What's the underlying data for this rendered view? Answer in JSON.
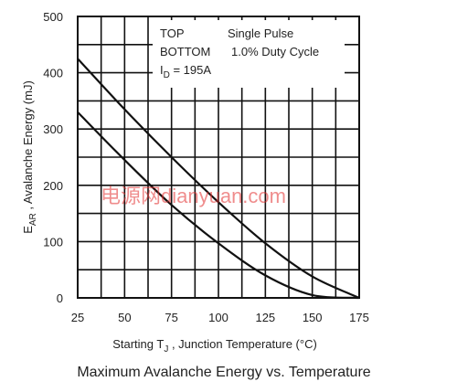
{
  "chart_data": {
    "type": "line",
    "caption": "Maximum Avalanche Energy vs. Temperature",
    "xlabel": {
      "prefix": "Starting T",
      "sub": "J",
      "suffix": " , Junction Temperature (°C)"
    },
    "ylabel": {
      "prefix": "E",
      "sub": "AR",
      "suffix": " , Avalanche Energy (mJ)"
    },
    "xlim": [
      25,
      175
    ],
    "ylim": [
      0,
      500
    ],
    "x_ticks": [
      25,
      50,
      75,
      100,
      125,
      150,
      175
    ],
    "y_ticks": [
      0,
      100,
      200,
      300,
      400,
      500
    ],
    "grid": true,
    "legend": {
      "placement": "top-right",
      "top_label": "TOP",
      "top_value": "Single Pulse",
      "bottom_label": "BOTTOM",
      "bottom_value": "1.0% Duty Cycle",
      "id_prefix": "I",
      "id_sub": "D",
      "id_suffix": " = 195A"
    },
    "series": [
      {
        "x": [
          25,
          50,
          75,
          100,
          125,
          150,
          175
        ],
        "y": [
          425,
          335,
          250,
          170,
          97,
          38,
          0
        ]
      },
      {
        "x": [
          25,
          50,
          75,
          100,
          125,
          150,
          175
        ],
        "y": [
          330,
          245,
          165,
          97,
          40,
          5,
          0
        ]
      }
    ],
    "watermark": "电源网dianyuan.com"
  }
}
